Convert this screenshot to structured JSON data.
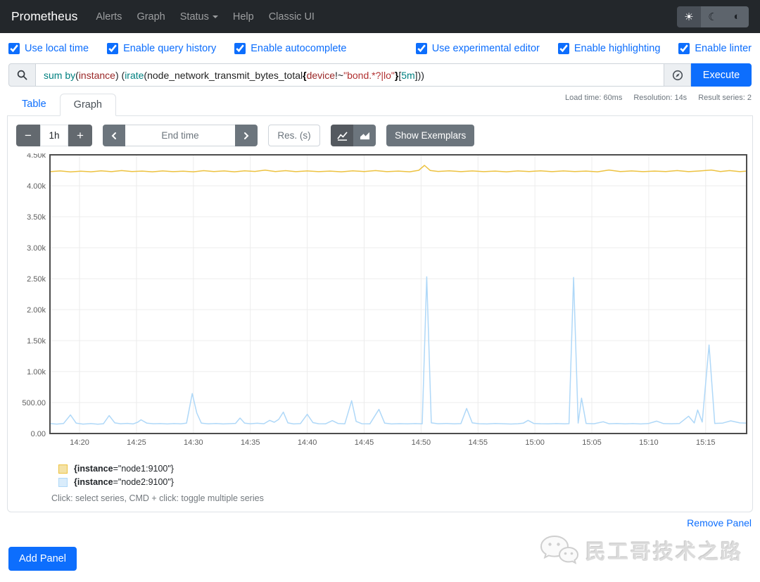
{
  "navbar": {
    "brand": "Prometheus",
    "items": [
      "Alerts",
      "Graph",
      "Status",
      "Help",
      "Classic UI"
    ],
    "theme": {
      "light": "☀",
      "dark": "☾",
      "auto": "◐"
    }
  },
  "options_left": [
    {
      "label": "Use local time",
      "checked": true
    },
    {
      "label": "Enable query history",
      "checked": true
    },
    {
      "label": "Enable autocomplete",
      "checked": true
    }
  ],
  "options_right": [
    {
      "label": "Use experimental editor",
      "checked": true
    },
    {
      "label": "Enable highlighting",
      "checked": true
    },
    {
      "label": "Enable linter",
      "checked": true
    }
  ],
  "query": {
    "tokens": [
      {
        "t": "sum",
        "c": "keyword"
      },
      {
        "t": " ",
        "c": "plain"
      },
      {
        "t": "by",
        "c": "keyword"
      },
      {
        "t": "(",
        "c": "plain"
      },
      {
        "t": "instance",
        "c": "label"
      },
      {
        "t": ") (",
        "c": "plain"
      },
      {
        "t": "irate",
        "c": "function"
      },
      {
        "t": "(",
        "c": "plain"
      },
      {
        "t": "node_network_transmit_bytes_total",
        "c": "metric"
      },
      {
        "t": "{",
        "c": "brace"
      },
      {
        "t": "device",
        "c": "label"
      },
      {
        "t": "!~",
        "c": "operator"
      },
      {
        "t": "\"bond.*?|lo\"",
        "c": "string"
      },
      {
        "t": "}",
        "c": "brace"
      },
      {
        "t": "[",
        "c": "plain"
      },
      {
        "t": "5m",
        "c": "duration"
      },
      {
        "t": "]",
        "c": "plain"
      },
      {
        "t": "))",
        "c": "plain"
      }
    ],
    "execute_label": "Execute"
  },
  "stats": {
    "load_time": "Load time: 60ms",
    "resolution": "Resolution: 14s",
    "result_series": "Result series: 2"
  },
  "tabs": [
    {
      "label": "Table"
    },
    {
      "label": "Graph"
    }
  ],
  "controls": {
    "minus": "−",
    "plus": "+",
    "range": "1h",
    "end_time_placeholder": "End time",
    "res_placeholder": "Res. (s)",
    "show_exemplars": "Show Exemplars"
  },
  "chart_data": {
    "type": "line",
    "x_unit": "minutes after 14:00",
    "xlim": [
      17.4,
      78.6
    ],
    "ylim": [
      0,
      4500
    ],
    "grid": true,
    "legend_position": "bottom-left",
    "x_ticks": [
      {
        "v": 20,
        "label": "14:20"
      },
      {
        "v": 25,
        "label": "14:25"
      },
      {
        "v": 30,
        "label": "14:30"
      },
      {
        "v": 35,
        "label": "14:35"
      },
      {
        "v": 40,
        "label": "14:40"
      },
      {
        "v": 45,
        "label": "14:45"
      },
      {
        "v": 50,
        "label": "14:50"
      },
      {
        "v": 55,
        "label": "14:55"
      },
      {
        "v": 60,
        "label": "15:00"
      },
      {
        "v": 65,
        "label": "15:05"
      },
      {
        "v": 70,
        "label": "15:10"
      },
      {
        "v": 75,
        "label": "15:15"
      }
    ],
    "y_ticks": [
      {
        "v": 0,
        "label": "0.00"
      },
      {
        "v": 500,
        "label": "500.00"
      },
      {
        "v": 1000,
        "label": "1.00k"
      },
      {
        "v": 1500,
        "label": "1.50k"
      },
      {
        "v": 2000,
        "label": "2.00k"
      },
      {
        "v": 2500,
        "label": "2.50k"
      },
      {
        "v": 3000,
        "label": "3.00k"
      },
      {
        "v": 3500,
        "label": "3.50k"
      },
      {
        "v": 4000,
        "label": "4.00k"
      },
      {
        "v": 4500,
        "label": "4.50k"
      }
    ],
    "series": [
      {
        "name": "{instance=\"node1:9100\"}",
        "color": "#edc240",
        "points": [
          [
            17.4,
            4228
          ],
          [
            18.3,
            4240
          ],
          [
            19.2,
            4224
          ],
          [
            20.1,
            4236
          ],
          [
            21.0,
            4226
          ],
          [
            21.9,
            4242
          ],
          [
            22.8,
            4228
          ],
          [
            23.7,
            4246
          ],
          [
            24.6,
            4230
          ],
          [
            25.5,
            4238
          ],
          [
            26.4,
            4226
          ],
          [
            27.3,
            4240
          ],
          [
            28.2,
            4228
          ],
          [
            29.1,
            4236
          ],
          [
            30.0,
            4226
          ],
          [
            30.9,
            4244
          ],
          [
            31.8,
            4230
          ],
          [
            32.7,
            4240
          ],
          [
            33.6,
            4226
          ],
          [
            34.5,
            4242
          ],
          [
            35.4,
            4232
          ],
          [
            36.3,
            4252
          ],
          [
            37.2,
            4230
          ],
          [
            38.1,
            4244
          ],
          [
            39.0,
            4228
          ],
          [
            40.0,
            4240
          ],
          [
            41.0,
            4228
          ],
          [
            42.0,
            4238
          ],
          [
            43.0,
            4226
          ],
          [
            44.0,
            4242
          ],
          [
            45.0,
            4230
          ],
          [
            46.0,
            4246
          ],
          [
            47.0,
            4228
          ],
          [
            48.0,
            4238
          ],
          [
            49.0,
            4226
          ],
          [
            49.8,
            4250
          ],
          [
            50.3,
            4330
          ],
          [
            50.8,
            4248
          ],
          [
            51.5,
            4232
          ],
          [
            52.5,
            4242
          ],
          [
            53.5,
            4228
          ],
          [
            54.5,
            4240
          ],
          [
            55.5,
            4228
          ],
          [
            56.5,
            4238
          ],
          [
            57.5,
            4226
          ],
          [
            58.5,
            4240
          ],
          [
            59.5,
            4230
          ],
          [
            60.5,
            4242
          ],
          [
            61.5,
            4228
          ],
          [
            62.5,
            4240
          ],
          [
            63.5,
            4230
          ],
          [
            64.5,
            4238
          ],
          [
            65.5,
            4226
          ],
          [
            66.5,
            4254
          ],
          [
            67.5,
            4230
          ],
          [
            68.5,
            4240
          ],
          [
            69.5,
            4228
          ],
          [
            70.5,
            4238
          ],
          [
            71.5,
            4230
          ],
          [
            72.5,
            4246
          ],
          [
            73.5,
            4228
          ],
          [
            74.5,
            4240
          ],
          [
            75.5,
            4254
          ],
          [
            76.3,
            4230
          ],
          [
            77.1,
            4246
          ],
          [
            78.0,
            4228
          ],
          [
            78.6,
            4238
          ]
        ]
      },
      {
        "name": "{instance=\"node2:9100\"}",
        "color": "#afd8f8",
        "points": [
          [
            17.4,
            160
          ],
          [
            18.0,
            152
          ],
          [
            18.6,
            163
          ],
          [
            19.2,
            300
          ],
          [
            19.7,
            168
          ],
          [
            20.3,
            152
          ],
          [
            21.0,
            160
          ],
          [
            21.6,
            150
          ],
          [
            22.1,
            158
          ],
          [
            22.6,
            290
          ],
          [
            23.1,
            172
          ],
          [
            23.6,
            158
          ],
          [
            24.2,
            164
          ],
          [
            24.7,
            154
          ],
          [
            25.1,
            182
          ],
          [
            25.4,
            222
          ],
          [
            25.9,
            168
          ],
          [
            26.5,
            158
          ],
          [
            27.1,
            160
          ],
          [
            27.7,
            155
          ],
          [
            28.3,
            160
          ],
          [
            28.9,
            157
          ],
          [
            29.4,
            168
          ],
          [
            29.9,
            645
          ],
          [
            30.3,
            330
          ],
          [
            30.7,
            168
          ],
          [
            31.3,
            156
          ],
          [
            32.0,
            161
          ],
          [
            32.6,
            154
          ],
          [
            33.2,
            159
          ],
          [
            33.7,
            164
          ],
          [
            34.1,
            250
          ],
          [
            34.5,
            168
          ],
          [
            35.0,
            158
          ],
          [
            35.6,
            166
          ],
          [
            36.2,
            158
          ],
          [
            36.7,
            212
          ],
          [
            37.1,
            182
          ],
          [
            37.5,
            228
          ],
          [
            37.9,
            345
          ],
          [
            38.3,
            172
          ],
          [
            38.8,
            154
          ],
          [
            39.4,
            160
          ],
          [
            40.0,
            310
          ],
          [
            40.5,
            176
          ],
          [
            41.0,
            158
          ],
          [
            41.6,
            156
          ],
          [
            42.2,
            208
          ],
          [
            42.7,
            162
          ],
          [
            43.3,
            156
          ],
          [
            43.9,
            530
          ],
          [
            44.3,
            196
          ],
          [
            44.8,
            158
          ],
          [
            45.5,
            156
          ],
          [
            46.3,
            390
          ],
          [
            46.8,
            168
          ],
          [
            47.4,
            154
          ],
          [
            48.1,
            159
          ],
          [
            48.8,
            156
          ],
          [
            49.5,
            160
          ],
          [
            50.1,
            157
          ],
          [
            50.5,
            2530
          ],
          [
            50.9,
            172
          ],
          [
            51.5,
            158
          ],
          [
            52.2,
            163
          ],
          [
            52.9,
            156
          ],
          [
            53.5,
            160
          ],
          [
            54.0,
            405
          ],
          [
            54.5,
            172
          ],
          [
            55.1,
            158
          ],
          [
            55.8,
            155
          ],
          [
            56.5,
            162
          ],
          [
            57.2,
            158
          ],
          [
            57.9,
            153
          ],
          [
            58.5,
            158
          ],
          [
            59.0,
            168
          ],
          [
            59.4,
            212
          ],
          [
            59.9,
            162
          ],
          [
            60.5,
            158
          ],
          [
            61.2,
            156
          ],
          [
            61.9,
            160
          ],
          [
            62.6,
            156
          ],
          [
            63.0,
            159
          ],
          [
            63.4,
            2520
          ],
          [
            63.8,
            168
          ],
          [
            64.1,
            570
          ],
          [
            64.5,
            162
          ],
          [
            65.2,
            158
          ],
          [
            66.0,
            190
          ],
          [
            66.5,
            158
          ],
          [
            67.2,
            162
          ],
          [
            67.9,
            156
          ],
          [
            68.6,
            160
          ],
          [
            69.3,
            155
          ],
          [
            70.0,
            162
          ],
          [
            70.7,
            200
          ],
          [
            71.3,
            160
          ],
          [
            72.0,
            158
          ],
          [
            72.7,
            162
          ],
          [
            73.5,
            280
          ],
          [
            74.0,
            170
          ],
          [
            74.3,
            380
          ],
          [
            74.7,
            185
          ],
          [
            75.3,
            1430
          ],
          [
            75.8,
            162
          ],
          [
            76.5,
            168
          ],
          [
            77.2,
            205
          ],
          [
            78.0,
            172
          ],
          [
            78.6,
            168
          ]
        ]
      }
    ]
  },
  "legend": {
    "items": [
      {
        "color": "#edc240",
        "fill": "#f4e2a6",
        "bold_part": "{instance",
        "rest": "=\"node1:9100\"}"
      },
      {
        "color": "#afd8f8",
        "fill": "#d9ecfb",
        "bold_part": "{instance",
        "rest": "=\"node2:9100\"}"
      }
    ],
    "help": "Click: select series, CMD + click: toggle multiple series"
  },
  "panel_footer": {
    "remove": "Remove Panel",
    "add": "Add Panel"
  },
  "watermark": {
    "text": "民工哥技术之路"
  }
}
